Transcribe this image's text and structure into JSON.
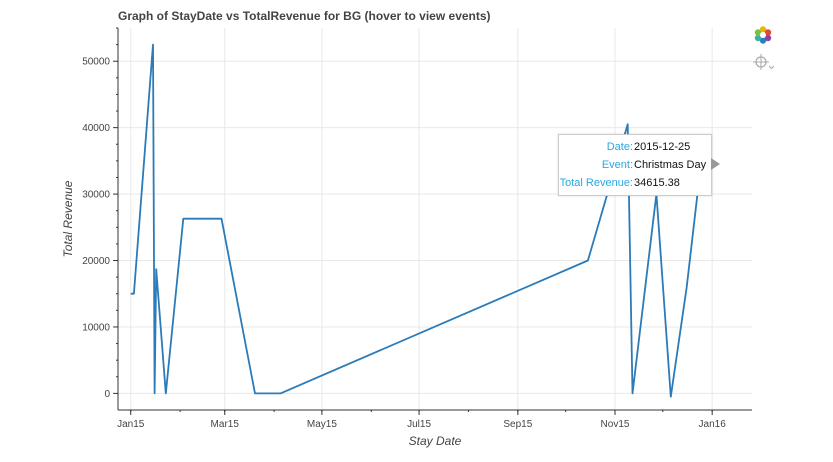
{
  "chart_data": {
    "type": "line",
    "title": "Graph of StayDate vs TotalRevenue for BG (hover to view events)",
    "xlabel": "Stay Date",
    "ylabel": "Total Revenue",
    "x_ticks": [
      "Jan15",
      "Mar15",
      "May15",
      "Jul15",
      "Sep15",
      "Nov15",
      "Jan16"
    ],
    "y_ticks": [
      "0",
      "10000",
      "20000",
      "30000",
      "40000",
      "50000"
    ],
    "ylim": [
      -2500,
      55000
    ],
    "xlim": [
      "2014-12-24",
      "2016-01-26"
    ],
    "grid": true,
    "line_color": "#2b7bb9",
    "series": [
      {
        "x": [
          "2015-01-01",
          "2015-01-03",
          "2015-01-15",
          "2015-01-16",
          "2015-01-17",
          "2015-01-23",
          "2015-02-03",
          "2015-02-27",
          "2015-03-20",
          "2015-04-05",
          "2015-10-15",
          "2015-11-09",
          "2015-11-12",
          "2015-11-27",
          "2015-12-06",
          "2015-12-16",
          "2015-12-25"
        ],
        "y": [
          15000,
          15000,
          52500,
          0,
          18700,
          0,
          26300,
          26300,
          0,
          0,
          20000,
          40500,
          0,
          30000,
          -500,
          16000,
          34615.38
        ]
      }
    ]
  },
  "tooltip": {
    "date_label": "Date:",
    "date_value": "2015-12-25",
    "event_label": "Event:",
    "event_value": "Christmas Day",
    "revenue_label": "Total Revenue:",
    "revenue_value": "34615.38"
  },
  "toolbar": {
    "items": [
      {
        "icon": "bokeh-logo-icon"
      },
      {
        "icon": "hover-crosshair-icon"
      }
    ]
  }
}
